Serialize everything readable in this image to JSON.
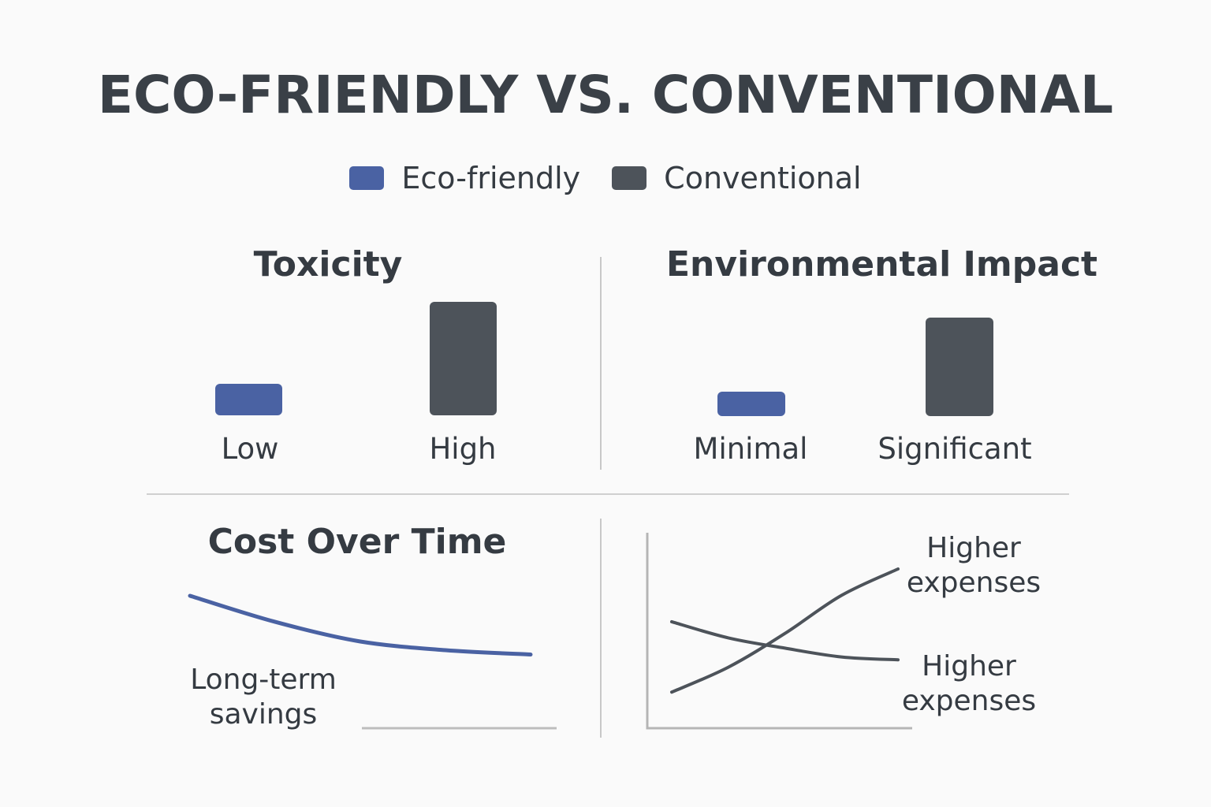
{
  "title": "ECO-FRIENDLY VS. CONVENTIONAL",
  "legend": [
    {
      "label": "Eco-friendly",
      "color": "#4a62a3"
    },
    {
      "label": "Conventional",
      "color": "#4d535a"
    }
  ],
  "chart_data": [
    {
      "type": "bar",
      "title": "Toxicity",
      "categories": [
        "Low",
        "High"
      ],
      "series": [
        {
          "name": "Eco-friendly",
          "values": [
            0.28,
            null
          ]
        },
        {
          "name": "Conventional",
          "values": [
            null,
            1.0
          ]
        }
      ],
      "ylim": [
        0,
        1
      ]
    },
    {
      "type": "bar",
      "title": "Environmental Impact",
      "categories": [
        "Minimal",
        "Significant"
      ],
      "series": [
        {
          "name": "Eco-friendly",
          "values": [
            0.24,
            null
          ]
        },
        {
          "name": "Conventional",
          "values": [
            null,
            0.98
          ]
        }
      ],
      "ylim": [
        0,
        1
      ]
    },
    {
      "type": "line",
      "title": "Cost Over Time",
      "series": [
        {
          "name": "Eco-friendly",
          "x": [
            0,
            0.25,
            0.5,
            0.75,
            1.0
          ],
          "values": [
            1.0,
            0.76,
            0.58,
            0.5,
            0.46
          ]
        }
      ],
      "annotation": "Long-term savings"
    },
    {
      "type": "line",
      "title": "",
      "series": [
        {
          "name": "Conventional",
          "x": [
            0,
            0.25,
            0.5,
            0.75,
            1.0
          ],
          "values": [
            0.16,
            0.33,
            0.56,
            0.82,
            1.0
          ]
        },
        {
          "name": "Conventional",
          "x": [
            0,
            0.25,
            0.5,
            0.75,
            1.0
          ],
          "values": [
            0.64,
            0.53,
            0.46,
            0.4,
            0.38
          ]
        }
      ],
      "annotations": [
        "Higher expenses",
        "Higher expenses"
      ]
    }
  ]
}
